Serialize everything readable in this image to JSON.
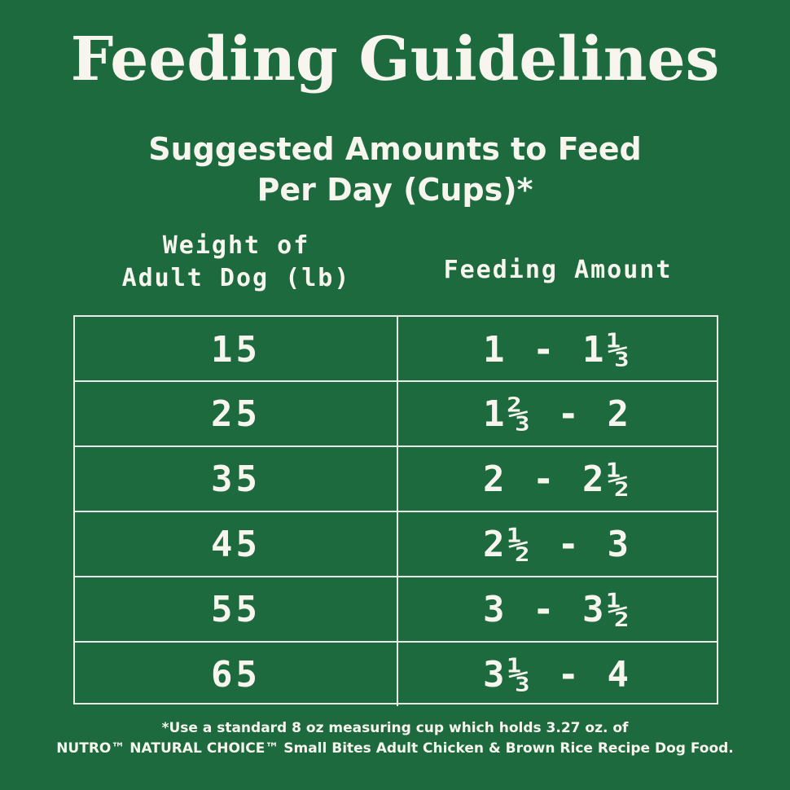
{
  "title": "Feeding Guidelines",
  "subtitle": {
    "line1": "Suggested Amounts to Feed",
    "line2": "Per Day (Cups)*"
  },
  "headers": {
    "weight_line1": "Weight of",
    "weight_line2": "Adult Dog (lb)",
    "amount": "Feeding Amount"
  },
  "rows": [
    {
      "weight": "15",
      "amount": "1 - 1⅓"
    },
    {
      "weight": "25",
      "amount": "1⅔ - 2"
    },
    {
      "weight": "35",
      "amount": "2 - 2½"
    },
    {
      "weight": "45",
      "amount": "2½ - 3"
    },
    {
      "weight": "55",
      "amount": "3 - 3½"
    },
    {
      "weight": "65",
      "amount": "3⅓ - 4"
    }
  ],
  "footnote": {
    "line1": "*Use a standard 8 oz measuring cup which holds 3.27 oz. of",
    "line2": "NUTRO™ NATURAL CHOICE™ Small Bites Adult Chicken & Brown Rice Recipe Dog Food."
  },
  "colors": {
    "background": "#1d6a3f",
    "text": "#f7f5ee",
    "lines": "#e9ece6"
  }
}
